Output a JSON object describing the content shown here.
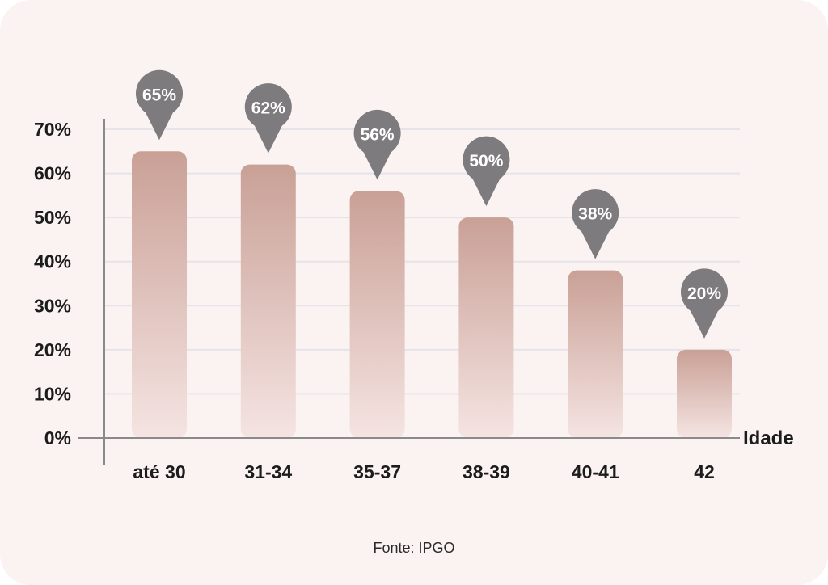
{
  "chart_data": {
    "type": "bar",
    "categories": [
      "até 30",
      "31-34",
      "35-37",
      "38-39",
      "40-41",
      "42"
    ],
    "values": [
      65,
      62,
      56,
      50,
      38,
      20
    ],
    "data_labels": [
      "65%",
      "62%",
      "56%",
      "50%",
      "38%",
      "20%"
    ],
    "xlabel": "Idade",
    "ylabel": "",
    "ylim": [
      0,
      70
    ],
    "yticks": [
      "0%",
      "10%",
      "20%",
      "30%",
      "40%",
      "50%",
      "60%",
      "70%"
    ],
    "grid": true,
    "unit": "%"
  },
  "source": "Fonte: IPGO",
  "colors": {
    "background": "#faf3f1",
    "bar_top": "#c9a096",
    "bar_bottom": "#f5e4e2",
    "pin": "#7d7b7d",
    "gridline": "#e6e3ea",
    "axis": "#8a8a8a"
  }
}
